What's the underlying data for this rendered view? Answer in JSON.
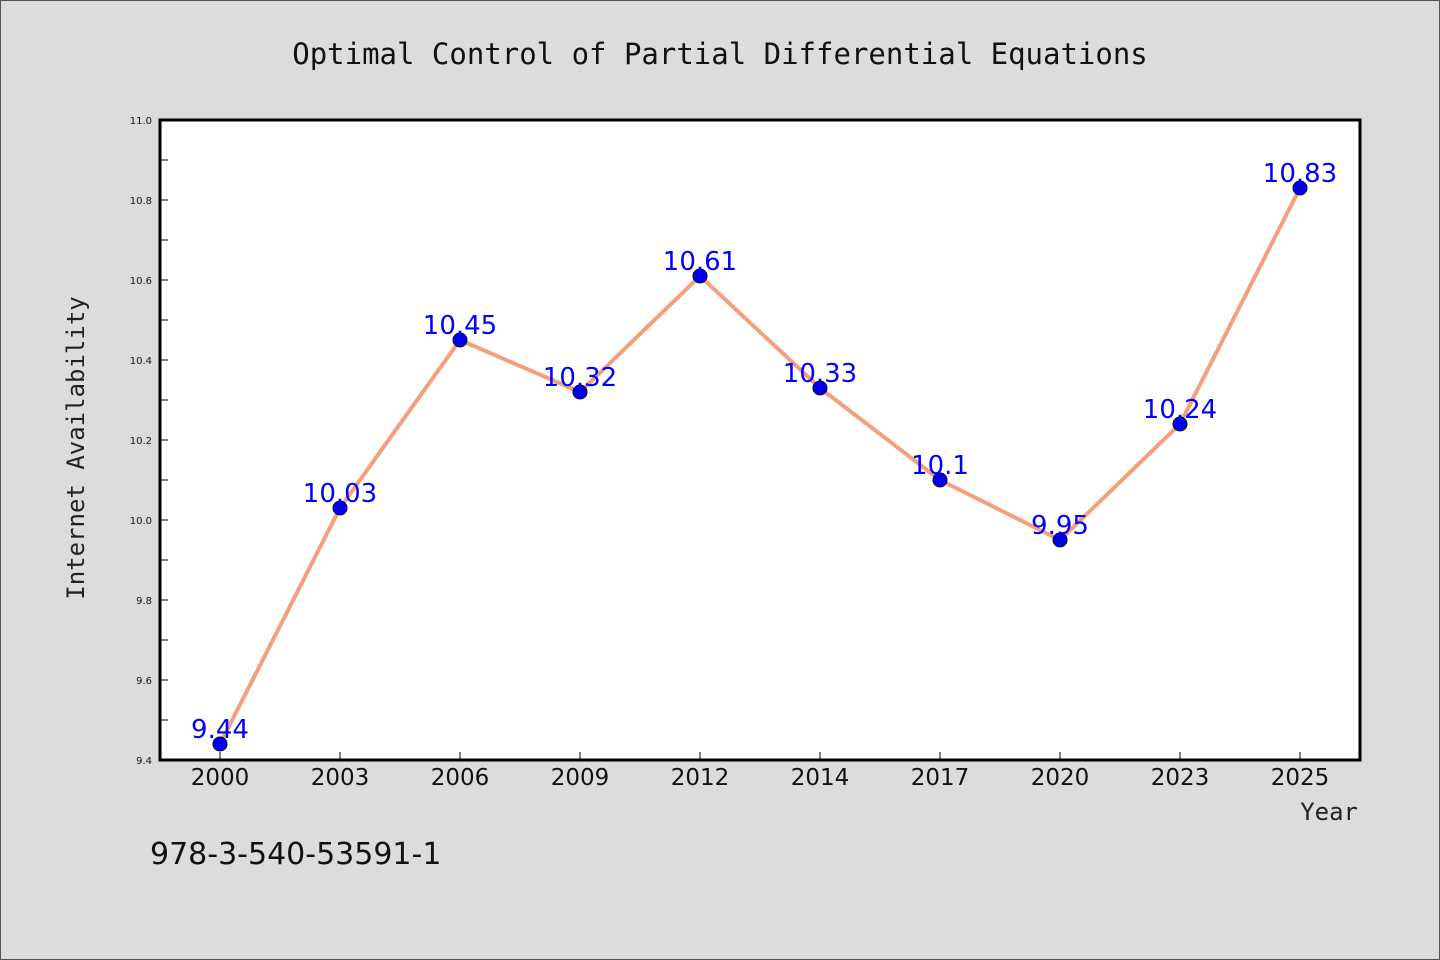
{
  "chart_data": {
    "type": "line",
    "title": "Optimal Control of Partial Differential Equations",
    "xlabel": "Year",
    "ylabel": "Internet Availability",
    "categories": [
      "2000",
      "2003",
      "2006",
      "2009",
      "2012",
      "2014",
      "2017",
      "2020",
      "2023",
      "2025"
    ],
    "series": [
      {
        "values": [
          9.44,
          10.03,
          10.45,
          10.32,
          10.61,
          10.33,
          10.1,
          9.95,
          10.24,
          10.83
        ],
        "data_labels": [
          "9.44",
          "10.03",
          "10.45",
          "10.32",
          "10.61",
          "10.33",
          "10.1",
          "9.95",
          "10.24",
          "10.83"
        ],
        "line_color": "#f4a07c",
        "marker_color": "#0000ee",
        "label_color": "#0000ff"
      }
    ],
    "ylim": [
      9.4,
      11.0
    ],
    "yticks": [
      "9.4",
      "9.6",
      "9.8",
      "10.0",
      "10.2",
      "10.4",
      "10.6",
      "10.8",
      "11.0"
    ],
    "grid": false,
    "legend": "none"
  },
  "footer": {
    "text": "978-3-540-53591-1"
  },
  "colors": {
    "background": "#dcdcdc",
    "plot_background": "#ffffff",
    "axis": "#000000"
  }
}
